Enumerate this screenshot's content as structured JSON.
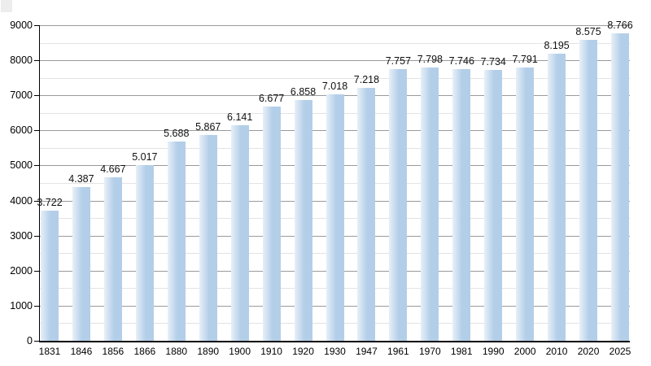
{
  "chart_data": {
    "type": "bar",
    "title": "",
    "xlabel": "",
    "ylabel": "",
    "categories": [
      "1831",
      "1846",
      "1856",
      "1866",
      "1880",
      "1890",
      "1900",
      "1910",
      "1920",
      "1930",
      "1947",
      "1961",
      "1970",
      "1981",
      "1990",
      "2000",
      "2010",
      "2020",
      "2025"
    ],
    "values": [
      3722,
      4387,
      4667,
      5017,
      5688,
      5867,
      6141,
      6677,
      6858,
      7018,
      7218,
      7757,
      7798,
      7746,
      7734,
      7791,
      8195,
      8575,
      8766
    ],
    "value_labels": [
      "3.722",
      "4.387",
      "4.667",
      "5.017",
      "5.688",
      "5.867",
      "6.141",
      "6.677",
      "6.858",
      "7.018",
      "7.218",
      "7.757",
      "7.798",
      "7.746",
      "7.734",
      "7.791",
      "8.195",
      "8.575",
      "8.766"
    ],
    "ylim": [
      0,
      9000
    ],
    "y_major_step": 1000,
    "y_minor_step": 500,
    "y_tick_labels": [
      "0",
      "1000",
      "2000",
      "3000",
      "4000",
      "5000",
      "6000",
      "7000",
      "8000",
      "9000"
    ],
    "grid": "on",
    "legend": "none",
    "colors": {
      "bar_main": "#b3cee8",
      "bar_gradient_left": "#e7f0f9",
      "grid_major": "#9a9a9a",
      "grid_minor": "#e3e3e3",
      "axis": "#000000",
      "text": "#000000",
      "background": "#ffffff",
      "corner_artifact": "#ededed"
    }
  }
}
